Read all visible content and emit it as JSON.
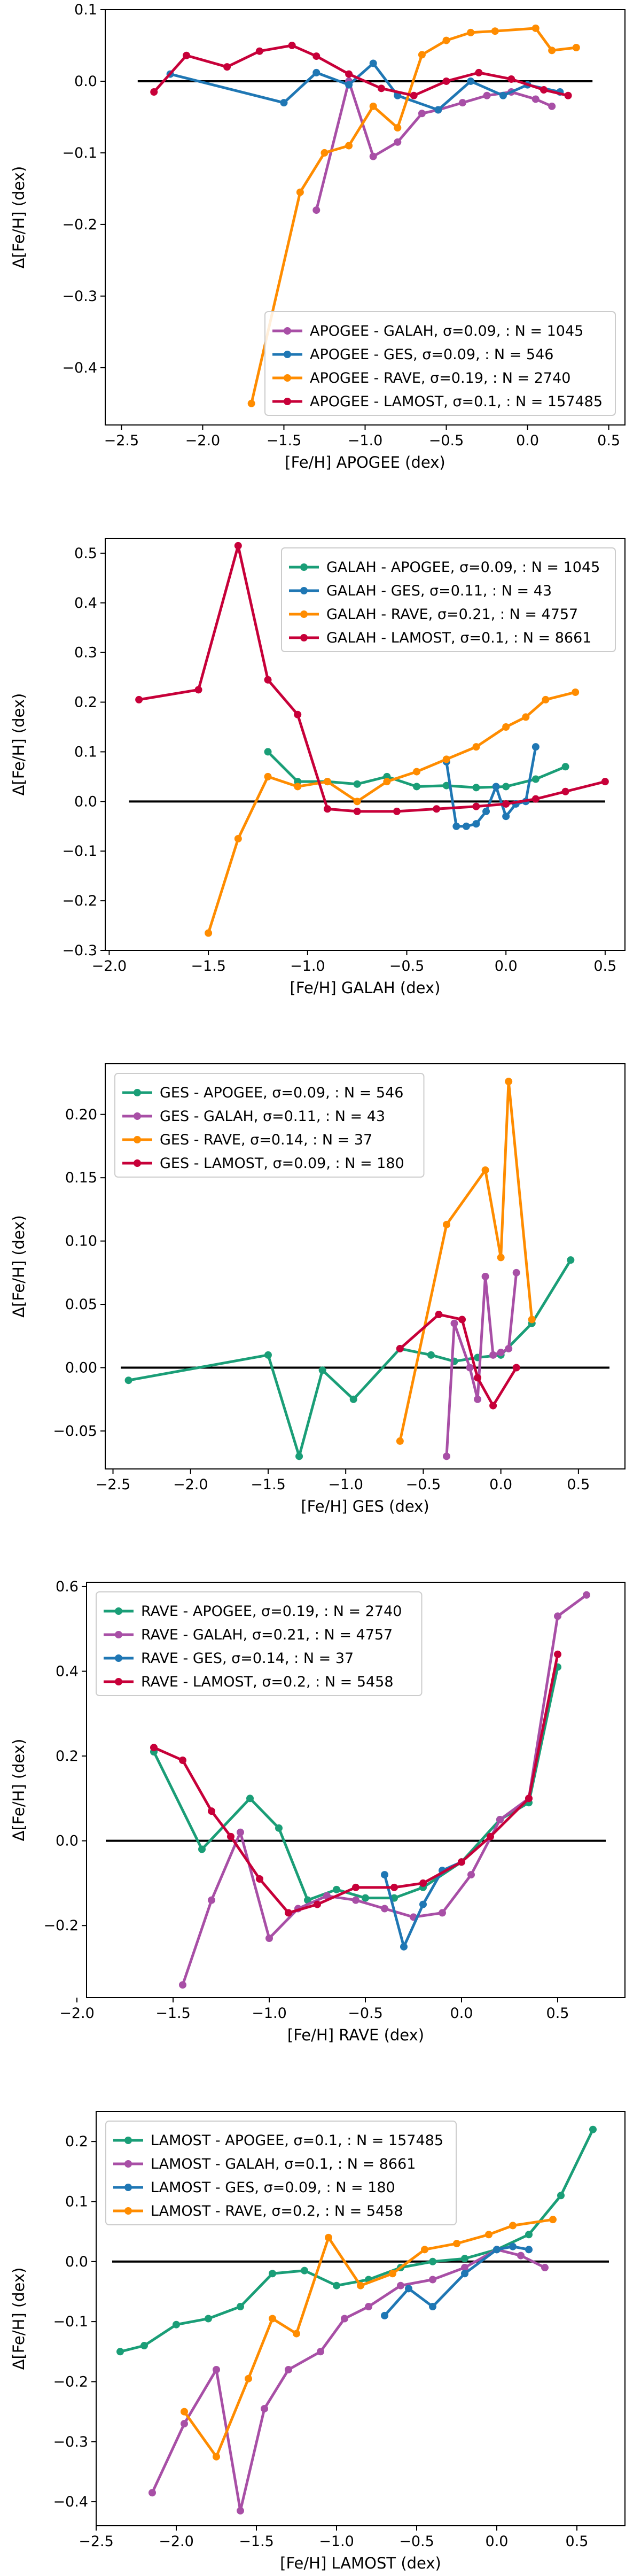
{
  "colors": {
    "APOGEE": "#1a9e77",
    "GALAH": "#a84fa6",
    "GES": "#1f77b4",
    "RAVE": "#ff8c00",
    "LAMOST": "#c70039",
    "zero_line": "#000000",
    "frame": "#000000"
  },
  "chart_data": [
    {
      "type": "line",
      "xlabel": "[Fe/H] APOGEE (dex)",
      "ylabel": "Δ[Fe/H] (dex)",
      "xlim": [
        -2.6,
        0.6
      ],
      "ylim": [
        -0.48,
        0.1
      ],
      "xticks": [
        -2.5,
        -2.0,
        -1.5,
        -1.0,
        -0.5,
        0.0,
        0.5
      ],
      "yticks": [
        -0.4,
        -0.3,
        -0.2,
        -0.1,
        0.0,
        0.1
      ],
      "xtick_labels": [
        "−2.5",
        "−2.0",
        "−1.5",
        "−1.0",
        "−0.5",
        "0.0",
        "0.5"
      ],
      "ytick_labels": [
        "−0.4",
        "−0.3",
        "−0.2",
        "−0.1",
        "0.0",
        "0.1"
      ],
      "zero_line": [
        -2.4,
        0.4
      ],
      "legend_position": "lower-right",
      "series": [
        {
          "name": "APOGEE - GALAH, σ=0.09, : N = 1045",
          "color_key": "GALAH",
          "x": [
            -1.3,
            -1.1,
            -0.95,
            -0.8,
            -0.65,
            -0.55,
            -0.4,
            -0.25,
            -0.1,
            0.05,
            0.15
          ],
          "y": [
            -0.18,
            0.0,
            -0.105,
            -0.085,
            -0.045,
            -0.04,
            -0.03,
            -0.02,
            -0.015,
            -0.025,
            -0.035
          ]
        },
        {
          "name": "APOGEE - GES, σ=0.09, : N = 546",
          "color_key": "GES",
          "x": [
            -2.2,
            -1.5,
            -1.3,
            -1.1,
            -0.95,
            -0.8,
            -0.55,
            -0.35,
            -0.15,
            0.0,
            0.2
          ],
          "y": [
            0.01,
            -0.03,
            0.012,
            -0.005,
            0.025,
            -0.02,
            -0.04,
            0.0,
            -0.02,
            -0.005,
            -0.015
          ]
        },
        {
          "name": "APOGEE - RAVE, σ=0.19, : N = 2740",
          "color_key": "RAVE",
          "x": [
            -1.7,
            -1.4,
            -1.25,
            -1.1,
            -0.95,
            -0.8,
            -0.65,
            -0.5,
            -0.35,
            -0.2,
            0.05,
            0.15,
            0.3
          ],
          "y": [
            -0.45,
            -0.155,
            -0.1,
            -0.09,
            -0.035,
            -0.065,
            0.037,
            0.057,
            0.068,
            0.07,
            0.074,
            0.043,
            0.047
          ]
        },
        {
          "name": "APOGEE - LAMOST, σ=0.1, : N = 157485",
          "color_key": "LAMOST",
          "x": [
            -2.3,
            -2.1,
            -1.85,
            -1.65,
            -1.45,
            -1.3,
            -1.1,
            -0.9,
            -0.7,
            -0.5,
            -0.3,
            -0.1,
            0.1,
            0.25
          ],
          "y": [
            -0.015,
            0.036,
            0.02,
            0.042,
            0.05,
            0.035,
            0.01,
            -0.01,
            -0.02,
            0.0,
            0.012,
            0.003,
            -0.012,
            -0.02
          ]
        }
      ]
    },
    {
      "type": "line",
      "xlabel": "[Fe/H] GALAH (dex)",
      "ylabel": "Δ[Fe/H] (dex)",
      "xlim": [
        -2.02,
        0.6
      ],
      "ylim": [
        -0.3,
        0.53
      ],
      "xticks": [
        -2.0,
        -1.5,
        -1.0,
        -0.5,
        0.0,
        0.5
      ],
      "yticks": [
        -0.3,
        -0.2,
        -0.1,
        0.0,
        0.1,
        0.2,
        0.3,
        0.4,
        0.5
      ],
      "xtick_labels": [
        "−2.0",
        "−1.5",
        "−1.0",
        "−0.5",
        "0.0",
        "0.5"
      ],
      "ytick_labels": [
        "−0.3",
        "−0.2",
        "−0.1",
        "0.0",
        "0.1",
        "0.2",
        "0.3",
        "0.4",
        "0.5"
      ],
      "zero_line": [
        -1.9,
        0.5
      ],
      "legend_position": "top-right",
      "series": [
        {
          "name": "GALAH - APOGEE, σ=0.09, : N = 1045",
          "color_key": "APOGEE",
          "x": [
            -1.2,
            -1.05,
            -0.9,
            -0.75,
            -0.6,
            -0.45,
            -0.3,
            -0.15,
            0.0,
            0.15,
            0.3
          ],
          "y": [
            0.1,
            0.04,
            0.04,
            0.035,
            0.05,
            0.03,
            0.032,
            0.028,
            0.03,
            0.045,
            0.07
          ]
        },
        {
          "name": "GALAH - GES, σ=0.11, : N = 43",
          "color_key": "GES",
          "x": [
            -0.3,
            -0.25,
            -0.2,
            -0.15,
            -0.1,
            -0.05,
            0.0,
            0.05,
            0.1,
            0.15
          ],
          "y": [
            0.08,
            -0.05,
            -0.05,
            -0.045,
            -0.02,
            0.03,
            -0.03,
            -0.005,
            0.0,
            0.11
          ]
        },
        {
          "name": "GALAH - RAVE, σ=0.21, : N = 4757",
          "color_key": "RAVE",
          "x": [
            -1.5,
            -1.35,
            -1.2,
            -1.05,
            -0.9,
            -0.75,
            -0.6,
            -0.45,
            -0.3,
            -0.15,
            0.0,
            0.1,
            0.2,
            0.35
          ],
          "y": [
            -0.265,
            -0.075,
            0.05,
            0.03,
            0.04,
            0.0,
            0.04,
            0.06,
            0.085,
            0.11,
            0.15,
            0.17,
            0.205,
            0.22
          ]
        },
        {
          "name": "GALAH - LAMOST, σ=0.1, : N = 8661",
          "color_key": "LAMOST",
          "x": [
            -1.85,
            -1.55,
            -1.35,
            -1.2,
            -1.05,
            -0.9,
            -0.75,
            -0.55,
            -0.35,
            -0.15,
            0.0,
            0.15,
            0.3,
            0.5
          ],
          "y": [
            0.205,
            0.225,
            0.515,
            0.245,
            0.175,
            -0.015,
            -0.02,
            -0.02,
            -0.015,
            -0.01,
            -0.005,
            0.005,
            0.02,
            0.04
          ]
        }
      ]
    },
    {
      "type": "line",
      "xlabel": "[Fe/H] GES (dex)",
      "ylabel": "Δ[Fe/H] (dex)",
      "xlim": [
        -2.55,
        0.8
      ],
      "ylim": [
        -0.08,
        0.24
      ],
      "xticks": [
        -2.5,
        -2.0,
        -1.5,
        -1.0,
        -0.5,
        0.0,
        0.5
      ],
      "yticks": [
        -0.05,
        0.0,
        0.05,
        0.1,
        0.15,
        0.2
      ],
      "xtick_labels": [
        "−2.5",
        "−2.0",
        "−1.5",
        "−1.0",
        "−0.5",
        "0.0",
        "0.5"
      ],
      "ytick_labels": [
        "−0.05",
        "0.00",
        "0.05",
        "0.10",
        "0.15",
        "0.20"
      ],
      "zero_line": [
        -2.45,
        0.7
      ],
      "legend_position": "top-left",
      "series": [
        {
          "name": "GES - APOGEE, σ=0.09, : N = 546",
          "color_key": "APOGEE",
          "x": [
            -2.4,
            -1.5,
            -1.3,
            -1.15,
            -0.95,
            -0.65,
            -0.45,
            -0.3,
            -0.15,
            0.0,
            0.2,
            0.45
          ],
          "y": [
            -0.01,
            0.01,
            -0.07,
            -0.002,
            -0.025,
            0.015,
            0.01,
            0.005,
            0.008,
            0.01,
            0.035,
            0.085
          ]
        },
        {
          "name": "GES - GALAH, σ=0.11, : N = 43",
          "color_key": "GALAH",
          "x": [
            -0.35,
            -0.3,
            -0.2,
            -0.15,
            -0.1,
            -0.05,
            0.0,
            0.05,
            0.1
          ],
          "y": [
            -0.07,
            0.035,
            0.0,
            -0.025,
            0.072,
            0.01,
            0.012,
            0.015,
            0.075
          ]
        },
        {
          "name": "GES - RAVE, σ=0.14, : N = 37",
          "color_key": "RAVE",
          "x": [
            -0.65,
            -0.35,
            -0.1,
            0.0,
            0.05,
            0.2
          ],
          "y": [
            -0.058,
            0.113,
            0.156,
            0.087,
            0.226,
            0.038
          ]
        },
        {
          "name": "GES - LAMOST, σ=0.09, : N = 180",
          "color_key": "LAMOST",
          "x": [
            -0.65,
            -0.4,
            -0.25,
            -0.15,
            -0.05,
            0.1
          ],
          "y": [
            0.015,
            0.042,
            0.038,
            -0.008,
            -0.03,
            0.0
          ]
        }
      ]
    },
    {
      "type": "line",
      "xlabel": "[Fe/H] RAVE (dex)",
      "ylabel": "Δ[Fe/H] (dex)",
      "xlim": [
        -1.95,
        0.85
      ],
      "ylim": [
        -0.37,
        0.61
      ],
      "xticks": [
        -2.0,
        -1.5,
        -1.0,
        -0.5,
        0.0,
        0.5
      ],
      "yticks": [
        -0.2,
        0.0,
        0.2,
        0.4,
        0.6
      ],
      "xtick_labels": [
        "−2.0",
        "−1.5",
        "−1.0",
        "−0.5",
        "0.0",
        "0.5"
      ],
      "ytick_labels": [
        "−0.2",
        "0.0",
        "0.2",
        "0.4",
        "0.6"
      ],
      "zero_line": [
        -1.85,
        0.75
      ],
      "legend_position": "top-left",
      "series": [
        {
          "name": "RAVE - APOGEE, σ=0.19, : N = 2740",
          "color_key": "APOGEE",
          "x": [
            -1.6,
            -1.35,
            -1.1,
            -0.95,
            -0.8,
            -0.65,
            -0.5,
            -0.35,
            -0.2,
            0.0,
            0.2,
            0.35,
            0.5
          ],
          "y": [
            0.21,
            -0.02,
            0.1,
            0.03,
            -0.14,
            -0.115,
            -0.135,
            -0.135,
            -0.11,
            -0.05,
            0.05,
            0.09,
            0.41
          ]
        },
        {
          "name": "RAVE - GALAH, σ=0.21, : N = 4757",
          "color_key": "GALAH",
          "x": [
            -1.45,
            -1.3,
            -1.15,
            -1.0,
            -0.85,
            -0.7,
            -0.55,
            -0.4,
            -0.25,
            -0.1,
            0.05,
            0.2,
            0.35,
            0.5,
            0.65
          ],
          "y": [
            -0.34,
            -0.14,
            0.02,
            -0.23,
            -0.16,
            -0.13,
            -0.14,
            -0.16,
            -0.18,
            -0.17,
            -0.08,
            0.05,
            0.1,
            0.53,
            0.58
          ]
        },
        {
          "name": "RAVE - GES, σ=0.14, : N = 37",
          "color_key": "GES",
          "x": [
            -0.4,
            -0.3,
            -0.2,
            -0.1,
            0.0
          ],
          "y": [
            -0.08,
            -0.25,
            -0.15,
            -0.07,
            -0.05
          ]
        },
        {
          "name": "RAVE - LAMOST, σ=0.2, : N = 5458",
          "color_key": "LAMOST",
          "x": [
            -1.6,
            -1.45,
            -1.3,
            -1.2,
            -1.05,
            -0.9,
            -0.75,
            -0.55,
            -0.35,
            -0.2,
            0.0,
            0.15,
            0.35,
            0.5
          ],
          "y": [
            0.22,
            0.19,
            0.07,
            0.01,
            -0.09,
            -0.17,
            -0.15,
            -0.11,
            -0.11,
            -0.1,
            -0.05,
            0.01,
            0.1,
            0.44
          ]
        }
      ]
    },
    {
      "type": "line",
      "xlabel": "[Fe/H] LAMOST (dex)",
      "ylabel": "Δ[Fe/H] (dex)",
      "xlim": [
        -2.5,
        0.8
      ],
      "ylim": [
        -0.44,
        0.25
      ],
      "xticks": [
        -2.5,
        -2.0,
        -1.5,
        -1.0,
        -0.5,
        0.0,
        0.5
      ],
      "yticks": [
        -0.4,
        -0.3,
        -0.2,
        -0.1,
        0.0,
        0.1,
        0.2
      ],
      "xtick_labels": [
        "−2.5",
        "−2.0",
        "−1.5",
        "−1.0",
        "−0.5",
        "0.0",
        "0.5"
      ],
      "ytick_labels": [
        "−0.4",
        "−0.3",
        "−0.2",
        "−0.1",
        "0.0",
        "0.1",
        "0.2"
      ],
      "zero_line": [
        -2.4,
        0.7
      ],
      "legend_position": "top-left",
      "series": [
        {
          "name": "LAMOST - APOGEE, σ=0.1, : N = 157485",
          "color_key": "APOGEE",
          "x": [
            -2.35,
            -2.2,
            -2.0,
            -1.8,
            -1.6,
            -1.4,
            -1.2,
            -1.0,
            -0.8,
            -0.6,
            -0.4,
            -0.2,
            0.0,
            0.2,
            0.4,
            0.6
          ],
          "y": [
            -0.15,
            -0.14,
            -0.105,
            -0.095,
            -0.075,
            -0.02,
            -0.015,
            -0.04,
            -0.03,
            -0.01,
            0.0,
            0.005,
            0.02,
            0.045,
            0.11,
            0.22
          ]
        },
        {
          "name": "LAMOST - GALAH, σ=0.1, : N = 8661",
          "color_key": "GALAH",
          "x": [
            -2.15,
            -1.95,
            -1.75,
            -1.6,
            -1.45,
            -1.3,
            -1.1,
            -0.95,
            -0.8,
            -0.6,
            -0.4,
            -0.2,
            0.0,
            0.15,
            0.3
          ],
          "y": [
            -0.385,
            -0.27,
            -0.18,
            -0.415,
            -0.245,
            -0.18,
            -0.15,
            -0.095,
            -0.075,
            -0.04,
            -0.03,
            -0.01,
            0.02,
            0.01,
            -0.01
          ]
        },
        {
          "name": "LAMOST - GES, σ=0.09, : N = 180",
          "color_key": "GES",
          "x": [
            -0.7,
            -0.55,
            -0.4,
            -0.2,
            0.0,
            0.1,
            0.2
          ],
          "y": [
            -0.09,
            -0.045,
            -0.075,
            -0.02,
            0.02,
            0.025,
            0.02
          ]
        },
        {
          "name": "LAMOST - RAVE, σ=0.2, : N = 5458",
          "color_key": "RAVE",
          "x": [
            -1.95,
            -1.75,
            -1.55,
            -1.4,
            -1.25,
            -1.05,
            -0.85,
            -0.65,
            -0.45,
            -0.25,
            -0.05,
            0.1,
            0.35
          ],
          "y": [
            -0.25,
            -0.325,
            -0.195,
            -0.095,
            -0.12,
            0.04,
            -0.04,
            -0.02,
            0.02,
            0.03,
            0.045,
            0.06,
            0.07
          ]
        }
      ]
    }
  ]
}
